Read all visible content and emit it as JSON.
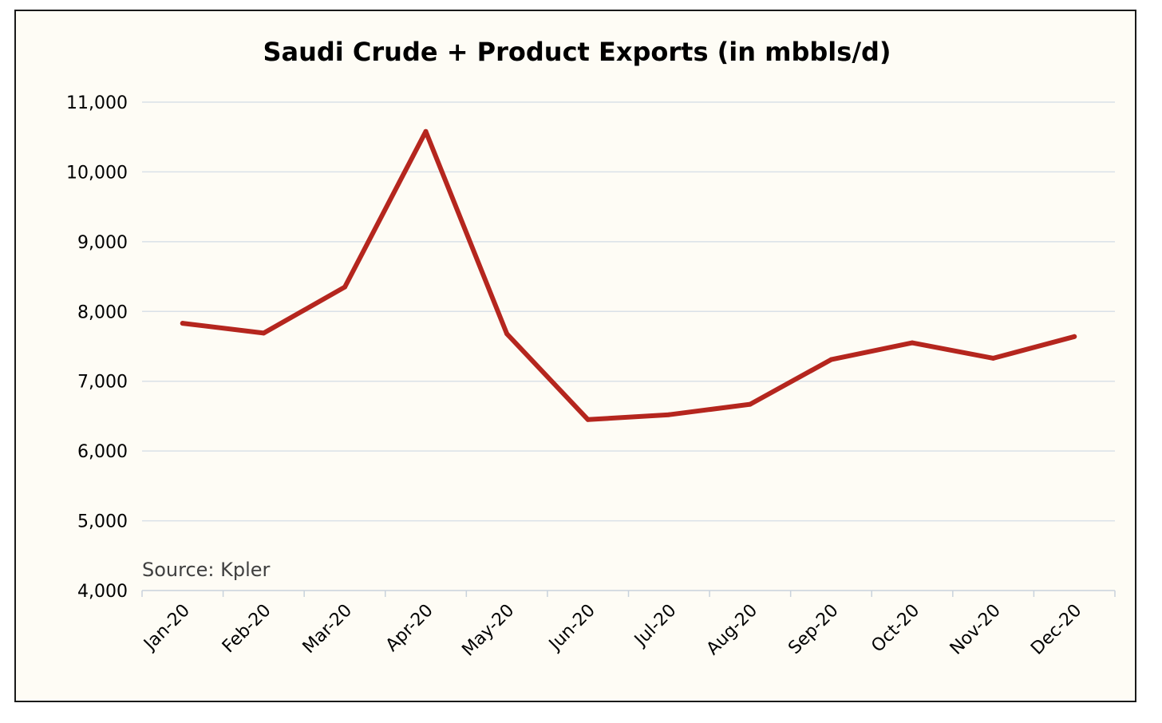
{
  "chart_data": {
    "type": "line",
    "title": "Saudi Crude + Product Exports (in mbbls/d)",
    "xlabel": "",
    "ylabel": "",
    "categories": [
      "Jan-20",
      "Feb-20",
      "Mar-20",
      "Apr-20",
      "May-20",
      "Jun-20",
      "Jul-20",
      "Aug-20",
      "Sep-20",
      "Oct-20",
      "Nov-20",
      "Dec-20"
    ],
    "series": [
      {
        "name": "Saudi Crude + Product Exports",
        "values": [
          7830,
          7690,
          8350,
          10580,
          7680,
          6450,
          6520,
          6670,
          7310,
          7550,
          7330,
          7640
        ]
      }
    ],
    "ylim": [
      4000,
      11000
    ],
    "yticks": [
      4000,
      5000,
      6000,
      7000,
      8000,
      9000,
      10000,
      11000
    ],
    "ytick_labels": [
      "4,000",
      "5,000",
      "6,000",
      "7,000",
      "8,000",
      "9,000",
      "10,000",
      "11,000"
    ],
    "grid": true,
    "legend": "none",
    "annotation": "Source: Kpler"
  },
  "colors": {
    "background": "#fefcf5",
    "line": "#b5261e",
    "grid": "#d9e1e8",
    "axis": "#c8d2dc",
    "border": "#1a1a1a"
  }
}
